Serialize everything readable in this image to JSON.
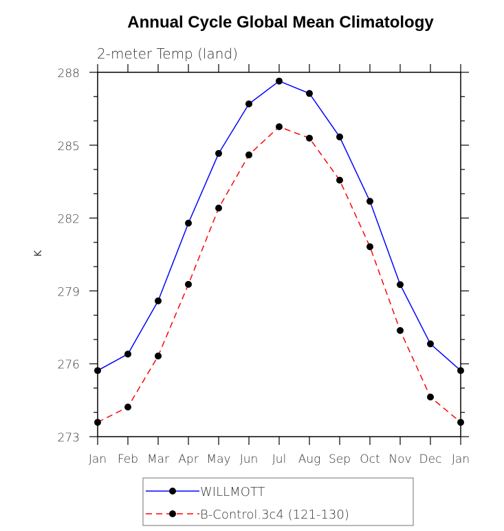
{
  "chart_data": {
    "type": "line",
    "title": "Annual Cycle Global Mean Climatology",
    "subtitle": "2-meter Temp (land)",
    "xlabel": "",
    "ylabel": "K",
    "categories": [
      "Jan",
      "Feb",
      "Mar",
      "Apr",
      "May",
      "Jun",
      "Jul",
      "Aug",
      "Sep",
      "Oct",
      "Nov",
      "Dec",
      "Jan"
    ],
    "ylim": [
      273,
      288
    ],
    "yticks": [
      273,
      276,
      279,
      282,
      285,
      288
    ],
    "yminor_step": 1,
    "grid": false,
    "legend_position": "bottom-center",
    "series": [
      {
        "name": "WILLMOTT",
        "color": "#0000ff",
        "line_style": "solid",
        "marker": "filled-circle",
        "values": [
          275.72,
          276.4,
          278.59,
          281.79,
          284.66,
          286.7,
          287.64,
          287.13,
          285.34,
          282.69,
          279.26,
          276.82,
          275.72
        ]
      },
      {
        "name": "B-Control.3c4 (121-130)",
        "color": "#ff0000",
        "line_style": "dashed",
        "marker": "filled-circle",
        "values": [
          273.59,
          274.22,
          276.32,
          279.27,
          282.41,
          284.6,
          285.76,
          285.29,
          283.56,
          280.82,
          277.37,
          274.63,
          273.59
        ]
      }
    ]
  }
}
